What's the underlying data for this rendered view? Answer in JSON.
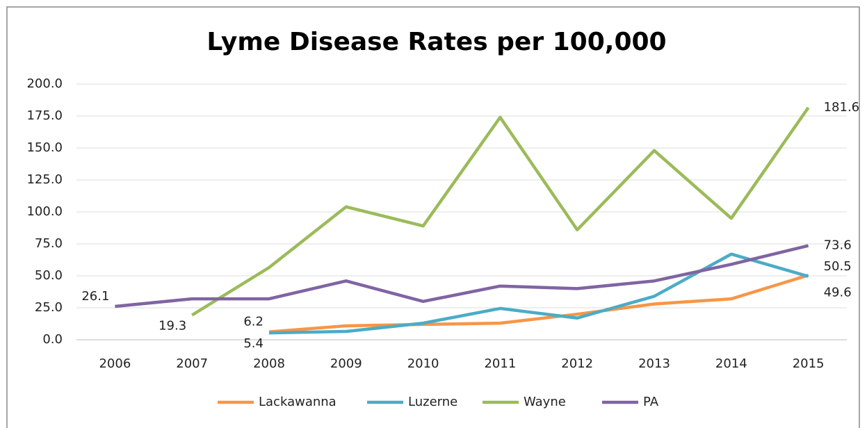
{
  "chart_data": {
    "type": "line",
    "title": "Lyme Disease Rates per 100,000",
    "categories": [
      "2006",
      "2007",
      "2008",
      "2009",
      "2010",
      "2011",
      "2012",
      "2013",
      "2014",
      "2015"
    ],
    "series": [
      {
        "name": "Lackawanna",
        "color": "#f79646",
        "values": [
          null,
          null,
          6.2,
          10.9,
          12,
          13,
          20,
          28,
          32,
          50.5
        ],
        "value_labels": [
          null,
          null,
          "6.2",
          null,
          null,
          null,
          null,
          null,
          null,
          "50.5"
        ]
      },
      {
        "name": "Luzerne",
        "color": "#4bacc6",
        "values": [
          null,
          null,
          5.4,
          6.5,
          13,
          24.5,
          17,
          34,
          67,
          49.6
        ],
        "value_labels": [
          null,
          null,
          "5.4",
          null,
          null,
          null,
          null,
          null,
          null,
          "49.6"
        ]
      },
      {
        "name": "Wayne",
        "color": "#9bbb59",
        "values": [
          null,
          19.3,
          56.5,
          104,
          89,
          174,
          86,
          148,
          95,
          181.6
        ],
        "value_labels": [
          null,
          "19.3",
          null,
          null,
          null,
          null,
          null,
          null,
          null,
          "181.6"
        ]
      },
      {
        "name": "PA",
        "color": "#8064a2",
        "values": [
          26.1,
          32,
          32,
          46,
          30,
          42,
          40,
          46,
          59,
          73.6
        ],
        "value_labels": [
          "26.1",
          null,
          null,
          null,
          null,
          null,
          null,
          null,
          null,
          "73.6"
        ]
      }
    ],
    "ylim": [
      0,
      200
    ],
    "yticks": [
      {
        "value": 0,
        "label": "0.0"
      },
      {
        "value": 25,
        "label": "25.0"
      },
      {
        "value": 50,
        "label": "50.0"
      },
      {
        "value": 75,
        "label": "75.0"
      },
      {
        "value": 100,
        "label": "100.0"
      },
      {
        "value": 125,
        "label": "125.0"
      },
      {
        "value": 150,
        "label": "150.0"
      },
      {
        "value": 175,
        "label": "175.0"
      },
      {
        "value": 200,
        "label": "200.0"
      }
    ],
    "grid": true,
    "legend": "bottom"
  }
}
